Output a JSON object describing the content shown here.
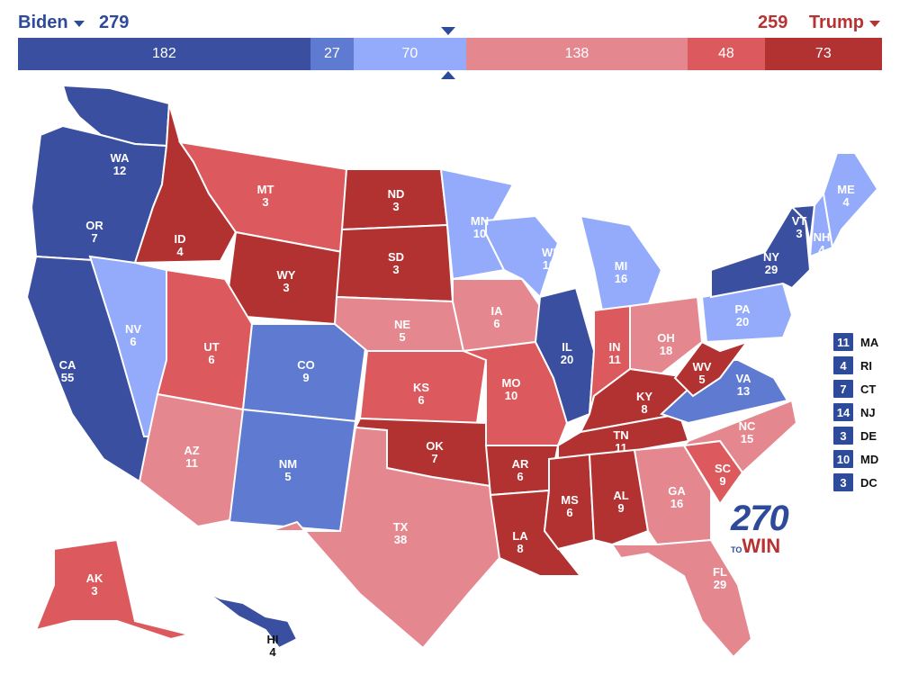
{
  "header": {
    "dem": {
      "name": "Biden",
      "total": "279"
    },
    "rep": {
      "name": "Trump",
      "total": "259"
    }
  },
  "tally": [
    {
      "value": 182,
      "label": "182",
      "color": "#3a4fa0"
    },
    {
      "value": 27,
      "label": "27",
      "color": "#5f7ad1"
    },
    {
      "value": 70,
      "label": "70",
      "color": "#93abfa"
    },
    {
      "value": 138,
      "label": "138",
      "color": "#e5878f"
    },
    {
      "value": 48,
      "label": "48",
      "color": "#dc5a5d"
    },
    {
      "value": 73,
      "label": "73",
      "color": "#b23232"
    }
  ],
  "colors": {
    "safe_dem": "#3a4fa0",
    "likely_dem": "#5f7ad1",
    "lean_dem": "#93abfa",
    "lean_rep": "#e5878f",
    "likely_rep": "#dc5a5d",
    "safe_rep": "#b23232"
  },
  "states": [
    {
      "abbr": "WA",
      "votes": "12",
      "rating": "safe_dem"
    },
    {
      "abbr": "OR",
      "votes": "7",
      "rating": "safe_dem"
    },
    {
      "abbr": "CA",
      "votes": "55",
      "rating": "safe_dem"
    },
    {
      "abbr": "NV",
      "votes": "6",
      "rating": "lean_dem"
    },
    {
      "abbr": "ID",
      "votes": "4",
      "rating": "safe_rep"
    },
    {
      "abbr": "MT",
      "votes": "3",
      "rating": "likely_rep"
    },
    {
      "abbr": "WY",
      "votes": "3",
      "rating": "safe_rep"
    },
    {
      "abbr": "UT",
      "votes": "6",
      "rating": "likely_rep"
    },
    {
      "abbr": "AZ",
      "votes": "11",
      "rating": "lean_rep"
    },
    {
      "abbr": "CO",
      "votes": "9",
      "rating": "likely_dem"
    },
    {
      "abbr": "NM",
      "votes": "5",
      "rating": "likely_dem"
    },
    {
      "abbr": "ND",
      "votes": "3",
      "rating": "safe_rep"
    },
    {
      "abbr": "SD",
      "votes": "3",
      "rating": "safe_rep"
    },
    {
      "abbr": "NE",
      "votes": "5",
      "rating": "lean_rep"
    },
    {
      "abbr": "KS",
      "votes": "6",
      "rating": "likely_rep"
    },
    {
      "abbr": "OK",
      "votes": "7",
      "rating": "safe_rep"
    },
    {
      "abbr": "TX",
      "votes": "38",
      "rating": "lean_rep"
    },
    {
      "abbr": "MN",
      "votes": "10",
      "rating": "lean_dem"
    },
    {
      "abbr": "IA",
      "votes": "6",
      "rating": "lean_rep"
    },
    {
      "abbr": "MO",
      "votes": "10",
      "rating": "likely_rep"
    },
    {
      "abbr": "AR",
      "votes": "6",
      "rating": "safe_rep"
    },
    {
      "abbr": "LA",
      "votes": "8",
      "rating": "safe_rep"
    },
    {
      "abbr": "WI",
      "votes": "10",
      "rating": "lean_dem"
    },
    {
      "abbr": "IL",
      "votes": "20",
      "rating": "safe_dem"
    },
    {
      "abbr": "MI",
      "votes": "16",
      "rating": "lean_dem"
    },
    {
      "abbr": "IN",
      "votes": "11",
      "rating": "likely_rep"
    },
    {
      "abbr": "OH",
      "votes": "18",
      "rating": "lean_rep"
    },
    {
      "abbr": "KY",
      "votes": "8",
      "rating": "safe_rep"
    },
    {
      "abbr": "TN",
      "votes": "11",
      "rating": "safe_rep"
    },
    {
      "abbr": "MS",
      "votes": "6",
      "rating": "safe_rep"
    },
    {
      "abbr": "AL",
      "votes": "9",
      "rating": "safe_rep"
    },
    {
      "abbr": "GA",
      "votes": "16",
      "rating": "lean_rep"
    },
    {
      "abbr": "FL",
      "votes": "29",
      "rating": "lean_rep"
    },
    {
      "abbr": "SC",
      "votes": "9",
      "rating": "likely_rep"
    },
    {
      "abbr": "NC",
      "votes": "15",
      "rating": "lean_rep"
    },
    {
      "abbr": "VA",
      "votes": "13",
      "rating": "likely_dem"
    },
    {
      "abbr": "WV",
      "votes": "5",
      "rating": "safe_rep"
    },
    {
      "abbr": "PA",
      "votes": "20",
      "rating": "lean_dem"
    },
    {
      "abbr": "NY",
      "votes": "29",
      "rating": "safe_dem"
    },
    {
      "abbr": "VT",
      "votes": "3",
      "rating": "safe_dem"
    },
    {
      "abbr": "NH",
      "votes": "4",
      "rating": "lean_dem"
    },
    {
      "abbr": "ME",
      "votes": "4",
      "rating": "lean_dem"
    },
    {
      "abbr": "AK",
      "votes": "3",
      "rating": "likely_rep"
    },
    {
      "abbr": "HI",
      "votes": "4",
      "rating": "safe_dem"
    }
  ],
  "small_states": [
    {
      "votes": "11",
      "abbr": "MA"
    },
    {
      "votes": "4",
      "abbr": "RI"
    },
    {
      "votes": "7",
      "abbr": "CT"
    },
    {
      "votes": "14",
      "abbr": "NJ"
    },
    {
      "votes": "3",
      "abbr": "DE"
    },
    {
      "votes": "10",
      "abbr": "MD"
    },
    {
      "votes": "3",
      "abbr": "DC"
    }
  ],
  "logo": {
    "number": "270",
    "to": "TO",
    "win": "WIN"
  }
}
